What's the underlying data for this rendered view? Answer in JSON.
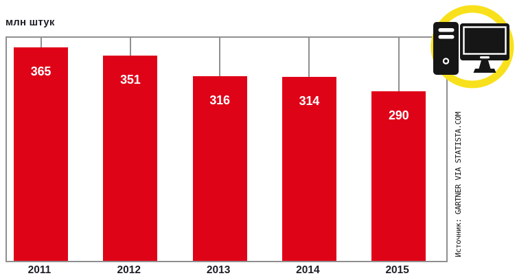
{
  "chart_data": {
    "type": "bar",
    "title": "",
    "unit_label": "млн штук",
    "categories": [
      "2011",
      "2012",
      "2013",
      "2014",
      "2015"
    ],
    "values": [
      365,
      351,
      316,
      314,
      290
    ],
    "value_labels_position": "inside-top",
    "ylim": [
      0,
      386
    ],
    "grid": false,
    "legend": "none",
    "frame": "box with ticks from top edge down to each bar top"
  },
  "source": {
    "label": "Источник: GARTNER VIA STATISTA.COM"
  },
  "icon": {
    "name": "desktop-computer-icon"
  },
  "colors": {
    "bar": "#df0318",
    "value_text": "#ffffff",
    "axis_text": "#1d1d26",
    "frame_line": "#8f8f8f",
    "ring": "#f8e11c",
    "icon_glyph": "#161616"
  }
}
